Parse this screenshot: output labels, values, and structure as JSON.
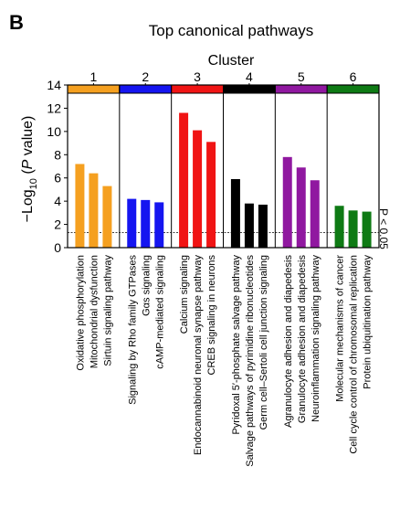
{
  "panel_label": "B",
  "chart_data": {
    "type": "bar",
    "title": "Top canonical pathways",
    "cluster_axis_label": "Cluster",
    "ylabel_parts": [
      "−Log",
      "10",
      " (",
      "P",
      " value)"
    ],
    "ylim": [
      0,
      14
    ],
    "yticks": [
      0,
      2,
      4,
      6,
      8,
      10,
      12,
      14
    ],
    "threshold": {
      "value": 1.3,
      "label": "P < 0.05"
    },
    "clusters": [
      {
        "name": "1",
        "color": "#F5A020",
        "categories": [
          "Oxidative phosphorylation",
          "Mitochondrial dysfunction",
          "Sirtuin signaling pathway"
        ],
        "values": [
          7.2,
          6.4,
          5.3
        ]
      },
      {
        "name": "2",
        "color": "#1515F0",
        "categories": [
          "Signaling by Rho family GTPases",
          "Gαs signaling",
          "cAMP-mediated signaling"
        ],
        "values": [
          4.2,
          4.1,
          3.9
        ]
      },
      {
        "name": "3",
        "color": "#F01414",
        "categories": [
          "Calcium signaling",
          "Endocannabinoid neuronal synapse pathway",
          "CREB signaling in neurons"
        ],
        "values": [
          11.6,
          10.1,
          9.1
        ]
      },
      {
        "name": "4",
        "color": "#000000",
        "categories": [
          "Pyridoxal 5′-phosphate salvage pathway",
          "Salvage pathways of pyrimidine ribonucleotides",
          "Germ cell–Sertoli cell junction signaling"
        ],
        "values": [
          5.9,
          3.8,
          3.7
        ]
      },
      {
        "name": "5",
        "color": "#9018A0",
        "categories": [
          "Agranulocyte adhesion and diapedesis",
          "Granulocyte adhesion and diapedesis",
          "Neuroinflammation signaling pathway"
        ],
        "values": [
          7.8,
          6.9,
          5.8
        ]
      },
      {
        "name": "6",
        "color": "#0E7A14",
        "categories": [
          "Molecular mechanisms of cancer",
          "Cell cycle control of chromosomal replication",
          "Protein ubiquitination pathway"
        ],
        "values": [
          3.6,
          3.2,
          3.1
        ]
      }
    ]
  }
}
